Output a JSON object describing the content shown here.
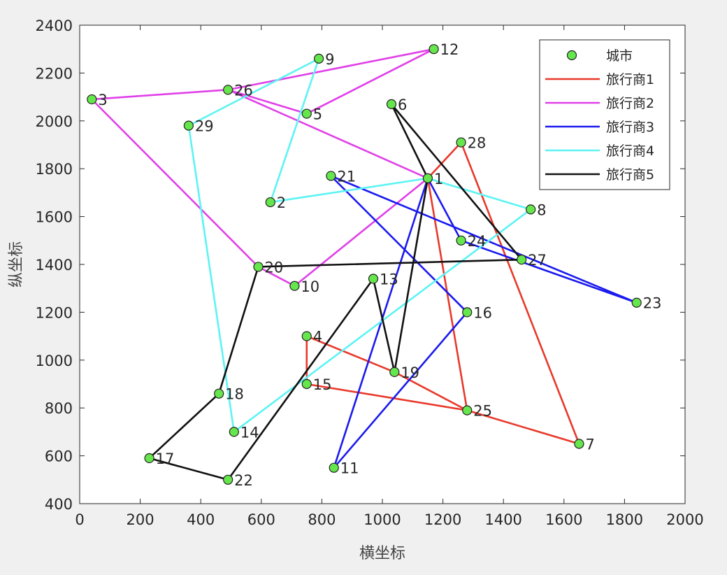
{
  "chart_data": {
    "type": "line",
    "xlabel": "横坐标",
    "ylabel": "纵坐标",
    "xlim": [
      0,
      2000
    ],
    "ylim": [
      400,
      2400
    ],
    "xticks": [
      0,
      200,
      400,
      600,
      800,
      1000,
      1200,
      1400,
      1600,
      1800,
      2000
    ],
    "yticks": [
      400,
      600,
      800,
      1000,
      1200,
      1400,
      1600,
      1800,
      2000,
      2200,
      2400
    ],
    "grid": false,
    "legend_position": "top-right",
    "cities": [
      {
        "id": "1",
        "x": 1150,
        "y": 1760
      },
      {
        "id": "2",
        "x": 630,
        "y": 1660
      },
      {
        "id": "3",
        "x": 40,
        "y": 2090
      },
      {
        "id": "4",
        "x": 750,
        "y": 1100
      },
      {
        "id": "5",
        "x": 750,
        "y": 2030
      },
      {
        "id": "6",
        "x": 1030,
        "y": 2070
      },
      {
        "id": "7",
        "x": 1650,
        "y": 650
      },
      {
        "id": "8",
        "x": 1490,
        "y": 1630
      },
      {
        "id": "9",
        "x": 790,
        "y": 2260
      },
      {
        "id": "10",
        "x": 710,
        "y": 1310
      },
      {
        "id": "11",
        "x": 840,
        "y": 550
      },
      {
        "id": "12",
        "x": 1170,
        "y": 2300
      },
      {
        "id": "13",
        "x": 970,
        "y": 1340
      },
      {
        "id": "14",
        "x": 510,
        "y": 700
      },
      {
        "id": "15",
        "x": 750,
        "y": 900
      },
      {
        "id": "16",
        "x": 1280,
        "y": 1200
      },
      {
        "id": "17",
        "x": 230,
        "y": 590
      },
      {
        "id": "18",
        "x": 460,
        "y": 860
      },
      {
        "id": "19",
        "x": 1040,
        "y": 950
      },
      {
        "id": "20",
        "x": 590,
        "y": 1390
      },
      {
        "id": "21",
        "x": 830,
        "y": 1770
      },
      {
        "id": "22",
        "x": 490,
        "y": 500
      },
      {
        "id": "23",
        "x": 1840,
        "y": 1240
      },
      {
        "id": "24",
        "x": 1260,
        "y": 1500
      },
      {
        "id": "25",
        "x": 1280,
        "y": 790
      },
      {
        "id": "26",
        "x": 490,
        "y": 2130
      },
      {
        "id": "27",
        "x": 1460,
        "y": 1420
      },
      {
        "id": "28",
        "x": 1260,
        "y": 1910
      },
      {
        "id": "29",
        "x": 360,
        "y": 1980
      }
    ],
    "series": [
      {
        "name": "旅行商1",
        "color": "#e8392b",
        "route": [
          "1",
          "25",
          "15",
          "4",
          "19",
          "25",
          "7",
          "28",
          "1"
        ]
      },
      {
        "name": "旅行商2",
        "color": "#e040e8",
        "route": [
          "1",
          "26",
          "12",
          "5",
          "26",
          "3",
          "20",
          "10",
          "1"
        ]
      },
      {
        "name": "旅行商3",
        "color": "#1a1aef",
        "route": [
          "1",
          "24",
          "23",
          "21",
          "16",
          "11",
          "1"
        ]
      },
      {
        "name": "旅行商4",
        "color": "#5ef3f3",
        "route": [
          "1",
          "2",
          "9",
          "29",
          "14",
          "8",
          "1"
        ]
      },
      {
        "name": "旅行商5",
        "color": "#111111",
        "route": [
          "1",
          "6",
          "27",
          "20",
          "18",
          "17",
          "22",
          "13",
          "19",
          "1"
        ]
      }
    ],
    "legend": {
      "marker_label": "城市",
      "marker_color": "#66e64d"
    }
  }
}
